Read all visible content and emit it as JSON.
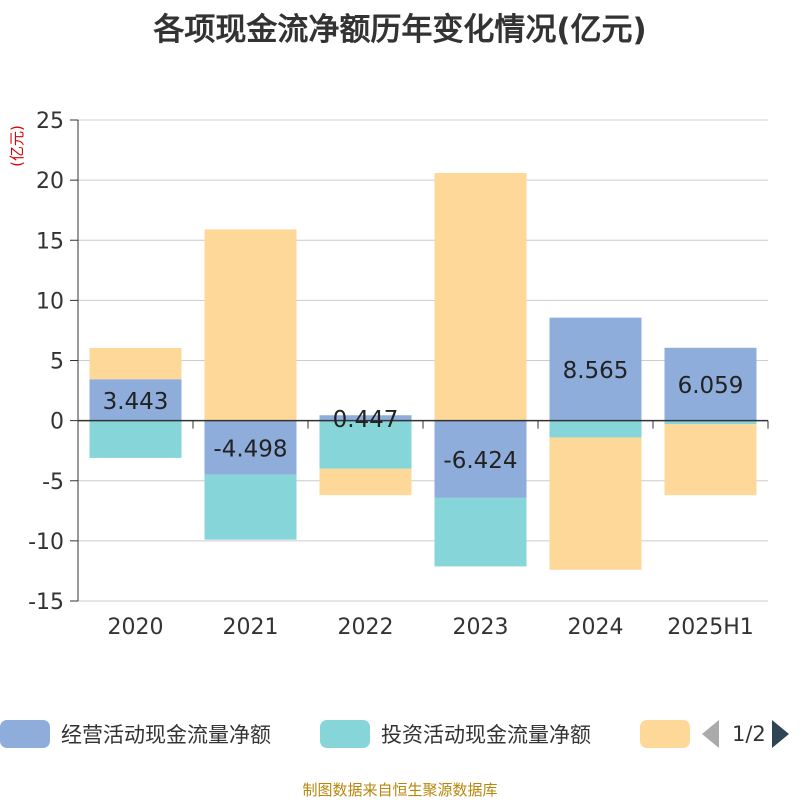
{
  "chart_data": {
    "type": "bar",
    "stacked": true,
    "title": "各项现金流净额历年变化情况(亿元)",
    "ylabel": "(亿元)",
    "ylim": [
      -15,
      25
    ],
    "yticks": [
      25,
      20,
      15,
      10,
      5,
      0,
      -5,
      -10,
      -15
    ],
    "grid": true,
    "categories": [
      "2020",
      "2021",
      "2022",
      "2023",
      "2024",
      "2025H1"
    ],
    "series": [
      {
        "name": "经营活动现金流量净额",
        "color": "#8eaddb",
        "show_labels": true,
        "values": [
          3.443,
          -4.498,
          0.447,
          -6.424,
          8.565,
          6.059
        ]
      },
      {
        "name": "投资活动现金流量净额",
        "color": "#86d5d8",
        "show_labels": false,
        "values": [
          -3.1,
          -5.4,
          -4.0,
          -5.7,
          -1.4,
          -0.3
        ]
      },
      {
        "name": "",
        "color": "#fed898",
        "show_labels": false,
        "values": [
          2.6,
          15.9,
          -2.2,
          20.6,
          -11.0,
          -5.9
        ]
      }
    ],
    "legend": {
      "position": "bottom",
      "page": "1/2"
    }
  },
  "source_note": "制图数据来自恒生聚源数据库"
}
